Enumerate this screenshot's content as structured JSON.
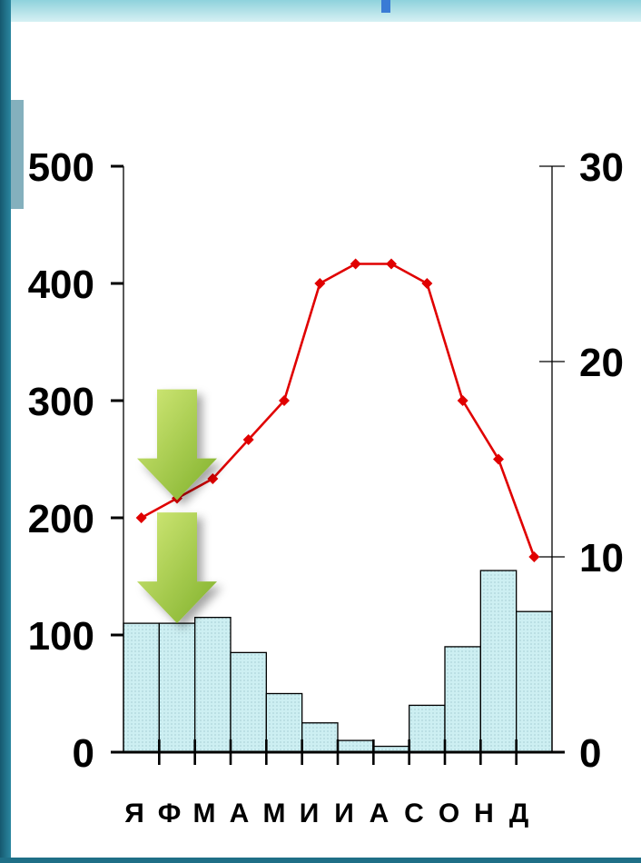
{
  "chart_data": {
    "type": "bar+line",
    "categories": [
      "Я",
      "Ф",
      "М",
      "А",
      "М",
      "И",
      "И",
      "А",
      "С",
      "О",
      "Н",
      "Д"
    ],
    "precipitation": {
      "axis": "left",
      "ylim": [
        0,
        500
      ],
      "ticks": [
        "0",
        "100",
        "200",
        "300",
        "400",
        "500"
      ],
      "values": [
        110,
        110,
        115,
        85,
        50,
        25,
        10,
        5,
        40,
        90,
        155,
        120
      ],
      "color": "#cdeff2"
    },
    "temperature": {
      "axis": "right",
      "ylim": [
        0,
        30
      ],
      "ticks": [
        "0",
        "10",
        "20",
        "30"
      ],
      "values": [
        12,
        13,
        14,
        16,
        18,
        24,
        25,
        25,
        24,
        18,
        15,
        10
      ],
      "color": "#e00000"
    },
    "grid": false,
    "arrows": [
      {
        "category_index": 1,
        "value": 215,
        "axis": "left"
      },
      {
        "category_index": 1,
        "value": 110,
        "axis": "left"
      }
    ]
  },
  "theme": {
    "frame_dark": "#1f6f87",
    "frame_light": "#bfe6ec",
    "arrow_light": "#c9e36b",
    "arrow_dark": "#7fb02a"
  }
}
